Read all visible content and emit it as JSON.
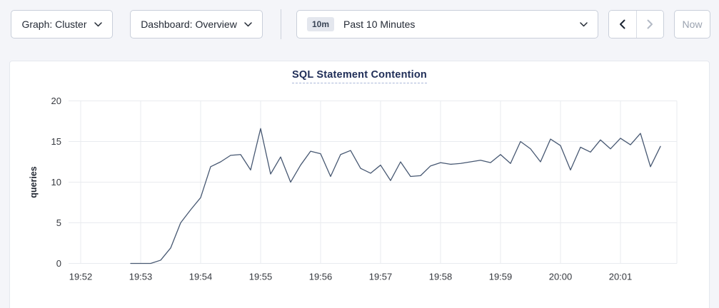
{
  "toolbar": {
    "graph_dropdown": {
      "label": "Graph: Cluster"
    },
    "dashboard_dropdown": {
      "label": "Dashboard: Overview"
    },
    "time_selector": {
      "badge": "10m",
      "label": "Past 10 Minutes"
    },
    "now_button": {
      "label": "Now"
    }
  },
  "icons": [
    "chevron-down-icon",
    "chevron-left-icon",
    "chevron-right-icon"
  ],
  "chart": {
    "title": "SQL Statement Contention",
    "ylabel": "queries"
  },
  "chart_data": {
    "type": "line",
    "title": "SQL Statement Contention",
    "xlabel": "",
    "ylabel": "queries",
    "ylim": [
      0,
      20
    ],
    "y_ticks": [
      0,
      5,
      10,
      15,
      20
    ],
    "x_tick_labels": [
      "19:52",
      "19:53",
      "19:54",
      "19:55",
      "19:56",
      "19:57",
      "19:58",
      "19:59",
      "20:00",
      "20:01"
    ],
    "x_tick_interval_seconds": 60,
    "grid": true,
    "legend_position": "none",
    "line_color": "#475872",
    "series": [
      {
        "name": "queries",
        "x": [
          "19:52:50",
          "19:53:00",
          "19:53:10",
          "19:53:20",
          "19:53:30",
          "19:53:40",
          "19:53:50",
          "19:54:00",
          "19:54:10",
          "19:54:20",
          "19:54:30",
          "19:54:40",
          "19:54:50",
          "19:55:00",
          "19:55:10",
          "19:55:20",
          "19:55:30",
          "19:55:40",
          "19:55:50",
          "19:56:00",
          "19:56:10",
          "19:56:20",
          "19:56:30",
          "19:56:40",
          "19:56:50",
          "19:57:00",
          "19:57:10",
          "19:57:20",
          "19:57:30",
          "19:57:40",
          "19:57:50",
          "19:58:00",
          "19:58:10",
          "19:58:20",
          "19:58:30",
          "19:58:40",
          "19:58:50",
          "19:59:00",
          "19:59:10",
          "19:59:20",
          "19:59:30",
          "19:59:40",
          "19:59:50",
          "20:00:00",
          "20:00:10",
          "20:00:20",
          "20:00:30",
          "20:00:40",
          "20:00:50",
          "20:01:00",
          "20:01:10",
          "20:01:20",
          "20:01:30",
          "20:01:40"
        ],
        "values": [
          0,
          0,
          0,
          0.4,
          1.9,
          5.0,
          6.6,
          8.1,
          11.9,
          12.5,
          13.3,
          13.4,
          11.5,
          16.6,
          11.0,
          13.1,
          10.0,
          12.1,
          13.8,
          13.5,
          10.7,
          13.4,
          13.9,
          11.7,
          11.1,
          12.1,
          10.2,
          12.5,
          10.7,
          10.8,
          12.0,
          12.4,
          12.2,
          12.3,
          12.5,
          12.7,
          12.4,
          13.4,
          12.3,
          15.0,
          14.1,
          12.5,
          15.3,
          14.5,
          11.5,
          14.3,
          13.7,
          15.2,
          14.1,
          15.4,
          14.6,
          16.0,
          11.9,
          14.4
        ]
      }
    ]
  },
  "colors": {
    "page_bg": "#f4f5f9",
    "card_bg": "#ffffff",
    "card_border": "#e5e8ee",
    "control_border": "#c9cfda",
    "text_dark": "#242a35",
    "title_blue": "#1f2d57",
    "badge_bg": "#e4e7ee",
    "disabled_text": "#b3bac6",
    "grid_line": "#e9ebef",
    "series_line": "#475872"
  }
}
